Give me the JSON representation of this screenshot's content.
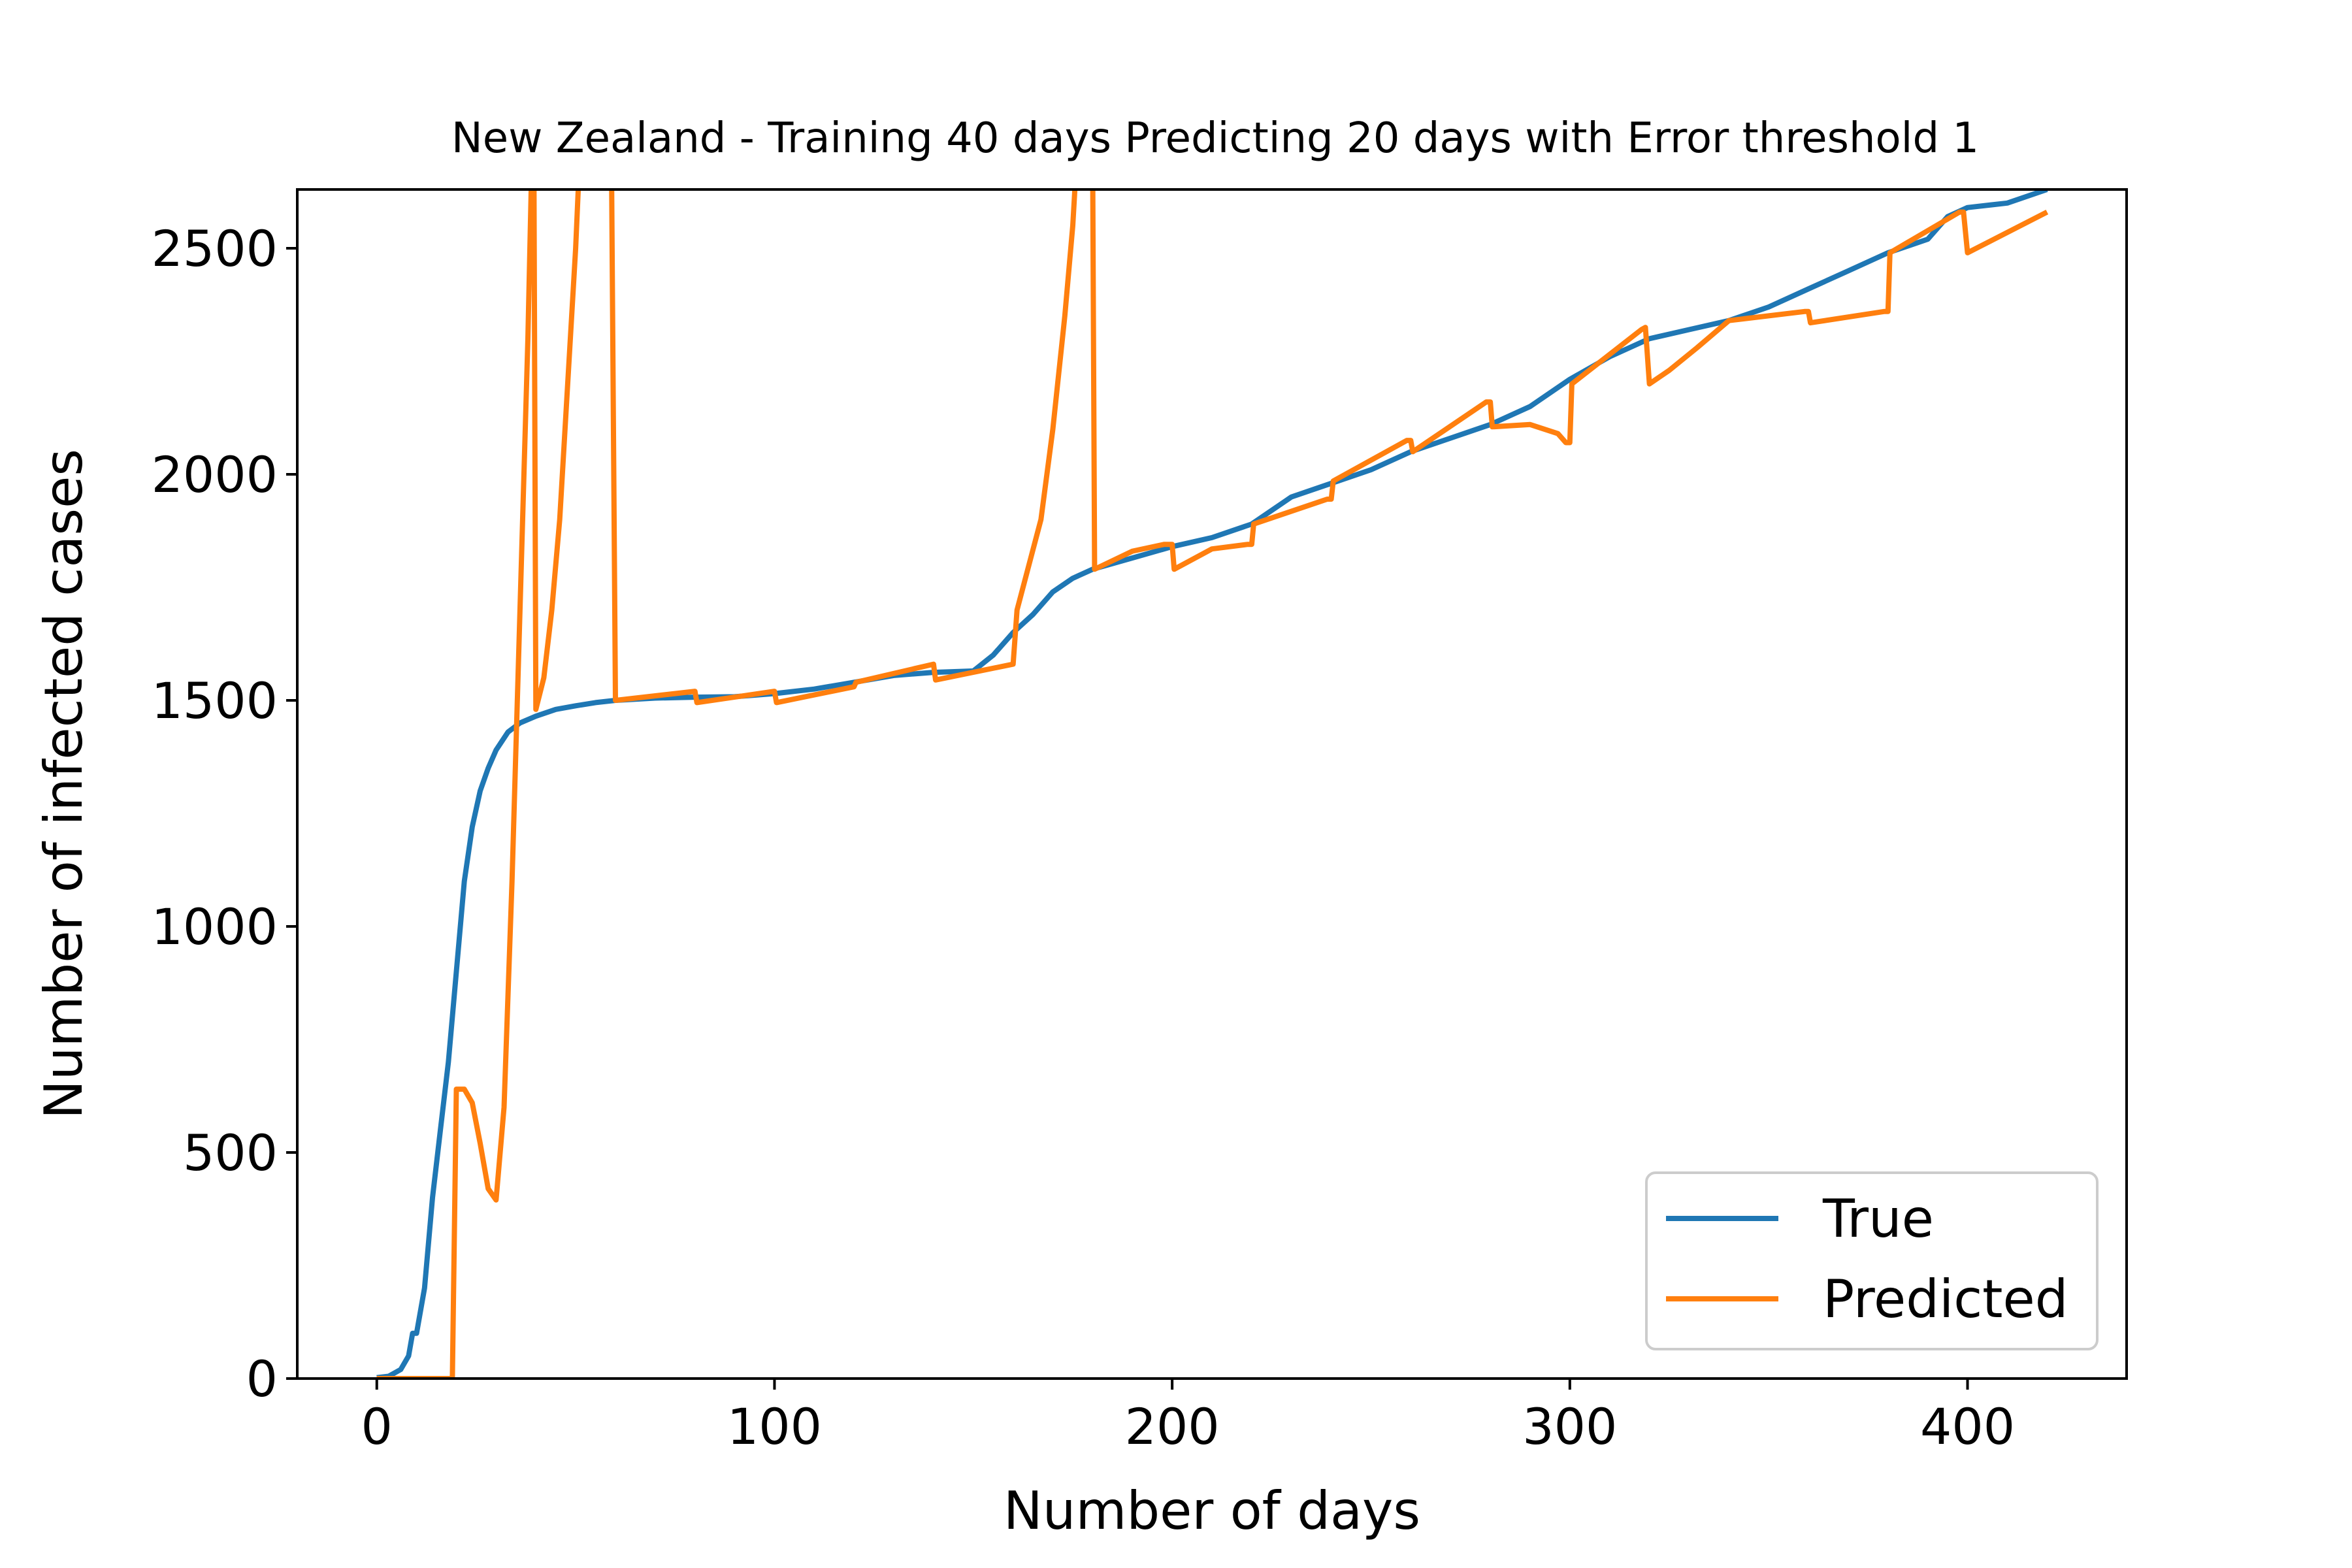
{
  "chart_data": {
    "type": "line",
    "title": "New Zealand - Training 40 days Predicting 20 days with Error threshold 1",
    "xlabel": "Number of days",
    "ylabel": "Number of infected cases",
    "xlim": [
      -20,
      440
    ],
    "ylim": [
      0,
      2630
    ],
    "xticks": [
      0,
      100,
      200,
      300,
      400
    ],
    "yticks": [
      0,
      500,
      1000,
      1500,
      2000,
      2500
    ],
    "grid": false,
    "legend_position": "lower-right",
    "series": [
      {
        "name": "True",
        "color": "#1f77b4",
        "points": [
          [
            0,
            2
          ],
          [
            3,
            5
          ],
          [
            6,
            20
          ],
          [
            8,
            50
          ],
          [
            9,
            100
          ],
          [
            10,
            100
          ],
          [
            12,
            200
          ],
          [
            14,
            400
          ],
          [
            16,
            550
          ],
          [
            18,
            700
          ],
          [
            20,
            900
          ],
          [
            22,
            1100
          ],
          [
            24,
            1220
          ],
          [
            26,
            1300
          ],
          [
            28,
            1350
          ],
          [
            30,
            1390
          ],
          [
            33,
            1430
          ],
          [
            36,
            1450
          ],
          [
            40,
            1465
          ],
          [
            45,
            1480
          ],
          [
            50,
            1488
          ],
          [
            55,
            1495
          ],
          [
            60,
            1500
          ],
          [
            70,
            1505
          ],
          [
            80,
            1507
          ],
          [
            90,
            1508
          ],
          [
            100,
            1515
          ],
          [
            110,
            1525
          ],
          [
            120,
            1540
          ],
          [
            130,
            1555
          ],
          [
            140,
            1562
          ],
          [
            150,
            1565
          ],
          [
            155,
            1600
          ],
          [
            160,
            1650
          ],
          [
            165,
            1690
          ],
          [
            170,
            1740
          ],
          [
            175,
            1770
          ],
          [
            180,
            1790
          ],
          [
            190,
            1815
          ],
          [
            200,
            1840
          ],
          [
            210,
            1860
          ],
          [
            220,
            1890
          ],
          [
            230,
            1950
          ],
          [
            240,
            1980
          ],
          [
            250,
            2010
          ],
          [
            260,
            2050
          ],
          [
            270,
            2080
          ],
          [
            280,
            2110
          ],
          [
            290,
            2150
          ],
          [
            300,
            2210
          ],
          [
            310,
            2260
          ],
          [
            320,
            2300
          ],
          [
            330,
            2320
          ],
          [
            340,
            2340
          ],
          [
            350,
            2370
          ],
          [
            360,
            2410
          ],
          [
            370,
            2450
          ],
          [
            380,
            2490
          ],
          [
            390,
            2520
          ],
          [
            395,
            2570
          ],
          [
            400,
            2590
          ],
          [
            410,
            2600
          ],
          [
            420,
            2630
          ]
        ]
      },
      {
        "name": "Predicted",
        "color": "#ff7f0e",
        "points": [
          [
            0,
            0
          ],
          [
            19,
            0
          ],
          [
            20,
            640
          ],
          [
            22,
            640
          ],
          [
            24,
            610
          ],
          [
            26,
            520
          ],
          [
            28,
            420
          ],
          [
            30,
            395
          ],
          [
            32,
            600
          ],
          [
            34,
            1100
          ],
          [
            36,
            1700
          ],
          [
            38,
            2300
          ],
          [
            39,
            2700
          ],
          [
            39.5,
            2700
          ],
          [
            40,
            1480
          ],
          [
            42,
            1550
          ],
          [
            44,
            1700
          ],
          [
            46,
            1900
          ],
          [
            48,
            2200
          ],
          [
            50,
            2500
          ],
          [
            51,
            2700
          ],
          [
            59,
            2700
          ],
          [
            60,
            1500
          ],
          [
            80,
            1520
          ],
          [
            80.5,
            1495
          ],
          [
            100,
            1520
          ],
          [
            100.5,
            1495
          ],
          [
            120,
            1530
          ],
          [
            120.5,
            1540
          ],
          [
            140,
            1580
          ],
          [
            140.5,
            1545
          ],
          [
            160,
            1580
          ],
          [
            161,
            1700
          ],
          [
            164,
            1800
          ],
          [
            167,
            1900
          ],
          [
            170,
            2100
          ],
          [
            173,
            2350
          ],
          [
            175,
            2550
          ],
          [
            176,
            2700
          ],
          [
            180,
            2700
          ],
          [
            180.5,
            1790
          ],
          [
            190,
            1830
          ],
          [
            198,
            1845
          ],
          [
            200,
            1845
          ],
          [
            200.5,
            1790
          ],
          [
            210,
            1835
          ],
          [
            219,
            1845
          ],
          [
            220,
            1845
          ],
          [
            220.5,
            1890
          ],
          [
            239,
            1945
          ],
          [
            240,
            1945
          ],
          [
            240.5,
            1985
          ],
          [
            259,
            2075
          ],
          [
            260,
            2075
          ],
          [
            260.5,
            2050
          ],
          [
            279,
            2160
          ],
          [
            280,
            2160
          ],
          [
            280.5,
            2105
          ],
          [
            290,
            2110
          ],
          [
            297,
            2090
          ],
          [
            299,
            2070
          ],
          [
            300,
            2070
          ],
          [
            300.5,
            2200
          ],
          [
            318,
            2320
          ],
          [
            319,
            2325
          ],
          [
            320,
            2200
          ],
          [
            325,
            2230
          ],
          [
            332,
            2280
          ],
          [
            340,
            2340
          ],
          [
            359,
            2360
          ],
          [
            360,
            2360
          ],
          [
            360.5,
            2335
          ],
          [
            379,
            2360
          ],
          [
            380,
            2360
          ],
          [
            380.5,
            2490
          ],
          [
            398,
            2580
          ],
          [
            399,
            2580
          ],
          [
            400,
            2490
          ],
          [
            420,
            2580
          ]
        ]
      }
    ]
  }
}
